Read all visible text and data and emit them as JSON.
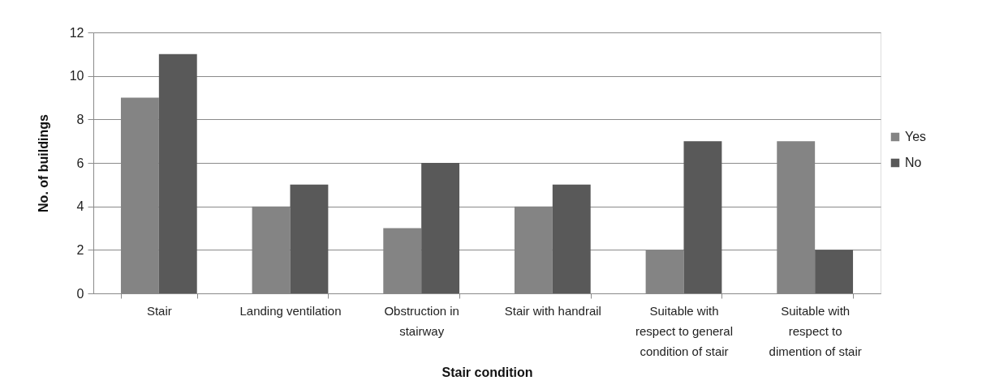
{
  "chart_data": {
    "type": "bar",
    "xlabel": "Stair condition",
    "ylabel": "No. of buildings",
    "categories": [
      "Stair",
      "Landing ventilation",
      "Obstruction in stairway",
      "Stair with handrail",
      "Suitable with respect to general condition of stair",
      "Suitable with respect to dimention of stair"
    ],
    "series": [
      {
        "name": "Yes",
        "color": "#848484",
        "values": [
          9,
          4,
          3,
          4,
          2,
          7
        ]
      },
      {
        "name": "No",
        "color": "#595959",
        "values": [
          11,
          5,
          6,
          5,
          7,
          2
        ]
      }
    ],
    "ylim": [
      0,
      12
    ],
    "yticks": [
      0,
      2,
      4,
      6,
      8,
      10,
      12
    ],
    "grid": "y",
    "legend": "right"
  }
}
